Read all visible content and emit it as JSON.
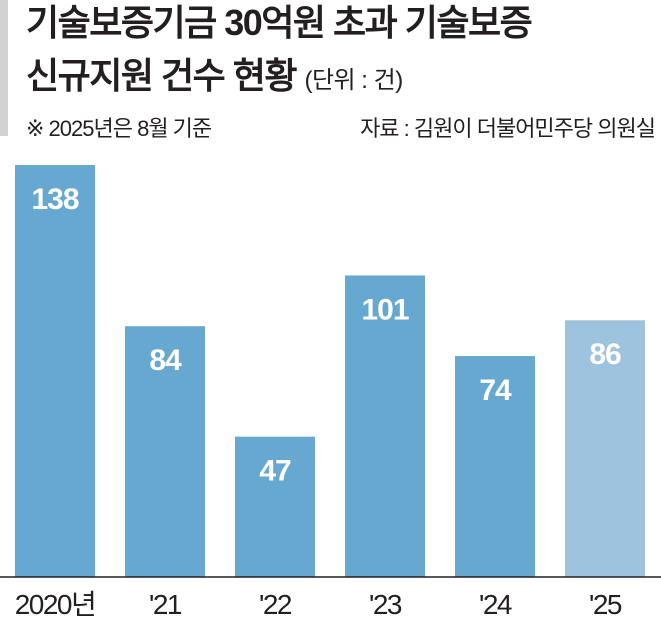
{
  "header": {
    "title_line1": "기술보증기금 30억원 초과 기술보증",
    "title_line2": "신규지원 건수 현황",
    "unit": "(단위 : 건)",
    "note": "※ 2025년은 8월 기준",
    "source": "자료 : 김원이 더불어민주당 의원실"
  },
  "chart_data": {
    "type": "bar",
    "title": "기술보증기금 30억원 초과 기술보증 신규지원 건수 현황",
    "unit": "건",
    "categories": [
      "2020년",
      "'21",
      "'22",
      "'23",
      "'24",
      "'25"
    ],
    "values": [
      138,
      84,
      47,
      101,
      74,
      86
    ],
    "data_labels": [
      "138",
      "84",
      "47",
      "101",
      "74",
      "86"
    ],
    "ylim": [
      0,
      138
    ],
    "grid": false,
    "colors": [
      "#67a8d0",
      "#67a8d0",
      "#67a8d0",
      "#67a8d0",
      "#67a8d0",
      "#9dc3de"
    ]
  }
}
